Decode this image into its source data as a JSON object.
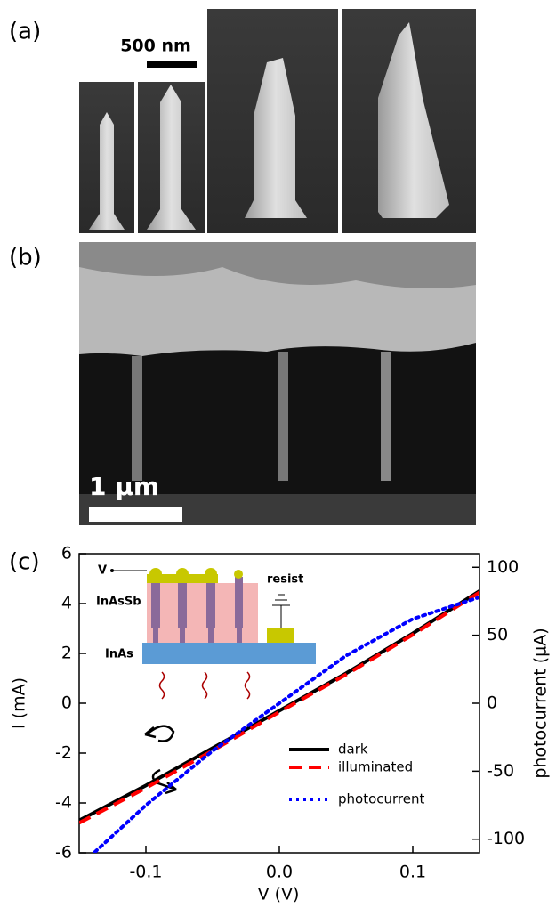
{
  "panels": {
    "a": {
      "label": "(a)",
      "scale_bar": "500 nm"
    },
    "b": {
      "label": "(b)",
      "scale_bar": "1 µm"
    },
    "c": {
      "label": "(c)"
    }
  },
  "inset": {
    "labels": [
      "V",
      "InAsSb",
      "InAs",
      "resist"
    ]
  },
  "chart_data": {
    "type": "line",
    "x_label": "V (V)",
    "y_label": "I (mA)",
    "y2_label": "photocurrent (µA)",
    "x": [
      -0.15,
      -0.1,
      -0.05,
      0,
      0.05,
      0.1,
      0.15
    ],
    "series": [
      {
        "name": "dark",
        "color": "#000000",
        "dash": "solid",
        "values": [
          -4.7,
          -3.3,
          -1.8,
          -0.3,
          1.2,
          2.8,
          4.5
        ]
      },
      {
        "name": "illuminated",
        "color": "#ff0000",
        "dash": "dashed",
        "values": [
          -4.8,
          -3.4,
          -1.9,
          -0.35,
          1.15,
          2.75,
          4.45
        ]
      },
      {
        "name": "photocurrent",
        "color": "#0000ff",
        "dash": "dotted",
        "axis": "y2",
        "values": [
          -120,
          -75,
          -35,
          0,
          35,
          62,
          78
        ]
      }
    ],
    "xlim": [
      -0.15,
      0.15
    ],
    "xticks": [
      -0.1,
      {
        "value": 0,
        "label": "0.0"
      },
      0.1
    ],
    "ylim": [
      -6,
      6
    ],
    "yticks": [
      -6,
      -4,
      -2,
      0,
      2,
      4,
      6
    ],
    "y2lim": [
      -110,
      110
    ],
    "y2ticks": [
      -100,
      -50,
      0,
      50,
      100
    ],
    "legend": "lower right"
  }
}
